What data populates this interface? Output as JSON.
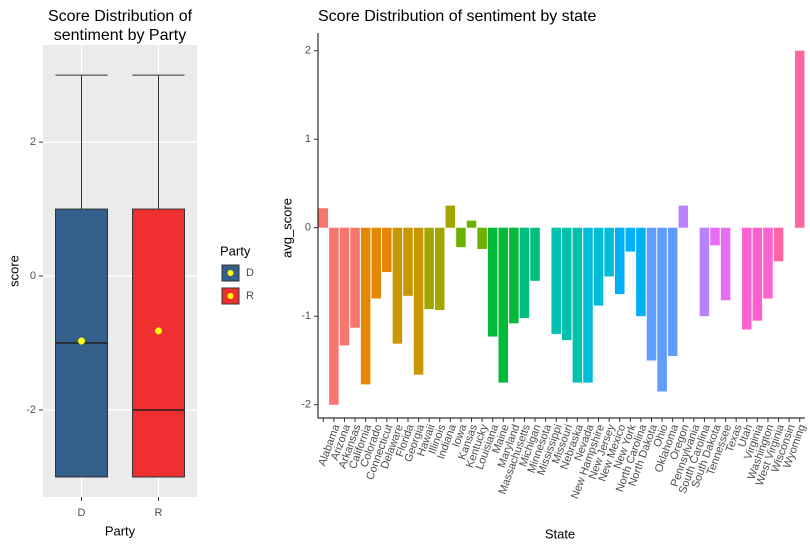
{
  "chart_data": [
    {
      "type": "box",
      "title": [
        "Score Distribution of",
        "sentiment by Party"
      ],
      "xlabel": "Party",
      "ylabel": "score",
      "categories": [
        "D",
        "R"
      ],
      "colors": [
        "#335f8a",
        "#f03030"
      ],
      "mean_color": "#ffff00",
      "boxes": [
        {
          "min": -3,
          "q1": -3,
          "median": -1,
          "q3": 1,
          "max": 3,
          "mean": -0.97
        },
        {
          "min": -3,
          "q1": -3,
          "median": -2,
          "q3": 1,
          "max": 3,
          "mean": -0.82
        }
      ],
      "ylim": [
        -3.3,
        3.45
      ],
      "yticks": [
        -2,
        0,
        2
      ],
      "grid": true,
      "legend_title": "Party",
      "legend": "right"
    },
    {
      "type": "bar",
      "title": "Score Distribution of sentiment by state",
      "xlabel": "State",
      "ylabel": "avg_score",
      "categories": [
        null,
        "Alabama",
        "Arizona",
        "Arkansas",
        "California",
        "Colorado",
        "Connecticut",
        "Delaware",
        "Florida",
        "Georgia",
        "Hawaii",
        "Illinois",
        "Indiana",
        "Iowa",
        "Kansas",
        "Kentucky",
        "Louisiana",
        "Maine",
        "Maryland",
        "Massachusetts",
        "Michigan",
        "Minnesota",
        "Mississippi",
        "Missouri",
        "Nebraska",
        "Nevada",
        "New Hampshire",
        "New Jersey",
        "New Mexico",
        "New York",
        "North Carolina",
        "North Dakota",
        "Ohio",
        "Oklahoma",
        "Oregon",
        "Pennsylvania",
        "South Carolina",
        "South Dakota",
        "Tennessee",
        "Texas",
        "Utah",
        "Virginia",
        "Washington",
        "West Virginia",
        "Wisconsin",
        "Wyoming"
      ],
      "values": [
        0.22,
        -2.0,
        -1.33,
        -1.13,
        -1.77,
        -0.8,
        -0.5,
        -1.31,
        -0.77,
        -1.66,
        -0.92,
        -0.93,
        0.25,
        -0.22,
        0.08,
        -0.24,
        -1.23,
        -1.75,
        -1.08,
        -1.02,
        -0.6,
        0,
        -1.2,
        -1.27,
        -1.75,
        -1.75,
        -0.88,
        -0.55,
        -0.75,
        -0.27,
        -1.0,
        -1.5,
        -1.85,
        -1.45,
        0.25,
        0,
        -1.0,
        -0.2,
        -0.82,
        0,
        -1.15,
        -1.05,
        -0.8,
        -0.38,
        0,
        2.0
      ],
      "colors": [
        "#F8766D",
        "#F8766D",
        "#F8766D",
        "#F8766D",
        "#E58700",
        "#E58700",
        "#E58700",
        "#C99800",
        "#C99800",
        "#C99800",
        "#A3A500",
        "#A3A500",
        "#A3A500",
        "#6BB100",
        "#6BB100",
        "#6BB100",
        "#00BA38",
        "#00BA38",
        "#00BA38",
        "#00BF7D",
        "#00BF7D",
        "#00BF7D",
        "#00C0AF",
        "#00C0AF",
        "#00C0AF",
        "#00BCD8",
        "#00BCD8",
        "#00BCD8",
        "#00B0F6",
        "#00B0F6",
        "#00B0F6",
        "#619CFF",
        "#619CFF",
        "#619CFF",
        "#B983FF",
        "#B983FF",
        "#B983FF",
        "#E76BF3",
        "#E76BF3",
        "#E76BF3",
        "#FD61D1",
        "#FD61D1",
        "#FD61D1",
        "#FF67A4",
        "#FF67A4",
        "#FF67A4"
      ],
      "ylim": [
        -2.15,
        2.2
      ],
      "yticks": [
        -2,
        -1,
        0,
        1,
        2
      ],
      "grid": false
    }
  ]
}
